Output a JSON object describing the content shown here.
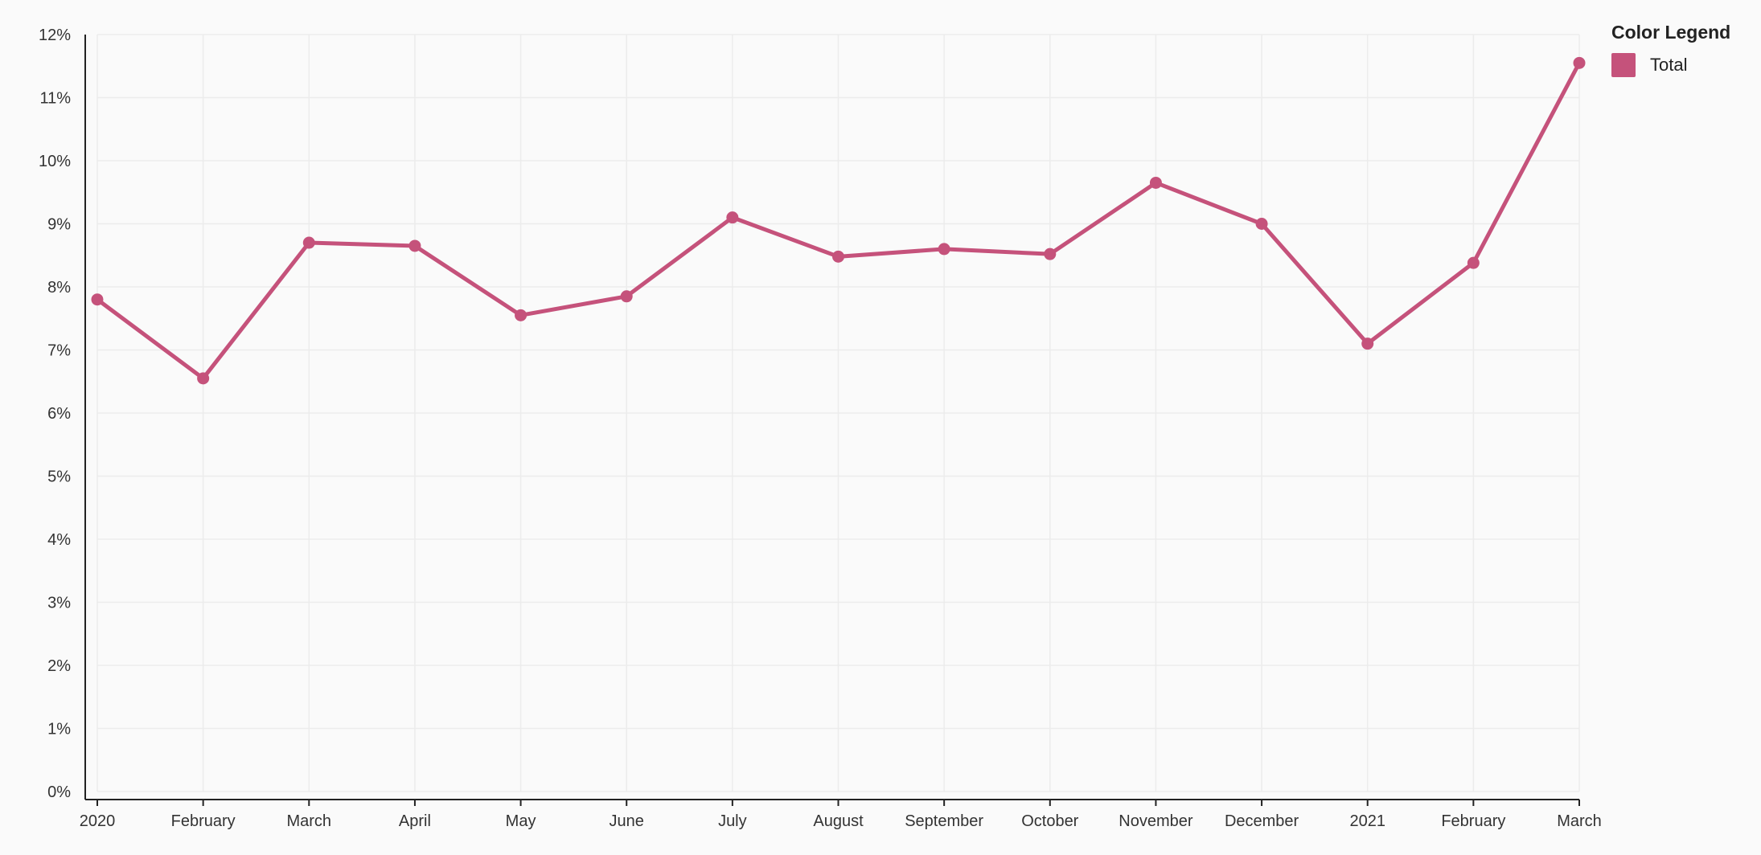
{
  "chart_data": {
    "type": "line",
    "title": "",
    "xlabel": "",
    "ylabel": "",
    "categories": [
      "2020",
      "February",
      "March",
      "April",
      "May",
      "June",
      "July",
      "August",
      "September",
      "October",
      "November",
      "December",
      "2021",
      "February",
      "March"
    ],
    "series": [
      {
        "name": "Total",
        "color": "#c5527b",
        "values": [
          7.8,
          6.55,
          8.7,
          8.65,
          7.55,
          7.85,
          9.1,
          8.48,
          8.6,
          8.52,
          9.65,
          9.0,
          7.1,
          8.38,
          11.55
        ]
      }
    ],
    "ylim": [
      0,
      12
    ],
    "yticks": [
      0,
      1,
      2,
      3,
      4,
      5,
      6,
      7,
      8,
      9,
      10,
      11,
      12
    ],
    "ytick_format": "percent",
    "grid": true,
    "legend_position": "top-right"
  },
  "legend": {
    "title": "Color Legend",
    "items": [
      {
        "label": "Total",
        "color": "#c5527b"
      }
    ]
  }
}
